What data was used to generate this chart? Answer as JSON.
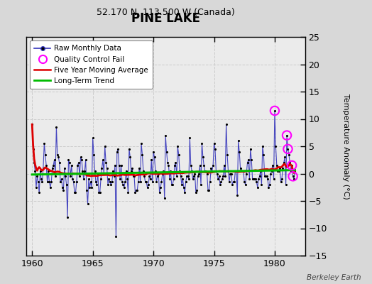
{
  "title": "PINE LAKE",
  "subtitle": "52.170 N, 113.500 W (Canada)",
  "credit": "Berkeley Earth",
  "ylabel": "Temperature Anomaly (°C)",
  "xlim": [
    1959.5,
    1982.5
  ],
  "ylim": [
    -15,
    25
  ],
  "yticks": [
    -15,
    -10,
    -5,
    0,
    5,
    10,
    15,
    20,
    25
  ],
  "xticks": [
    1960,
    1965,
    1970,
    1975,
    1980
  ],
  "bg_color": "#d8d8d8",
  "plot_bg_color": "#ebebeb",
  "raw_color": "#3333bb",
  "raw_dot_color": "#000000",
  "ma_color": "#dd0000",
  "trend_color": "#00bb00",
  "qc_color": "#ff00ff",
  "raw_monthly": [
    9.0,
    4.5,
    2.0,
    0.5,
    -2.5,
    -0.5,
    -1.5,
    -3.5,
    0.5,
    -1.0,
    -1.5,
    1.0,
    5.5,
    3.5,
    1.5,
    -1.5,
    0.5,
    -1.5,
    -2.5,
    -1.5,
    1.0,
    1.5,
    2.5,
    -0.5,
    8.5,
    3.5,
    3.0,
    2.0,
    -1.5,
    -1.0,
    -2.5,
    -3.0,
    1.0,
    -0.5,
    -2.0,
    -8.0,
    2.5,
    2.0,
    -0.5,
    1.5,
    -1.0,
    -1.5,
    -3.5,
    -3.5,
    -1.5,
    1.5,
    2.0,
    -0.5,
    3.0,
    2.5,
    0.5,
    -1.0,
    0.5,
    2.5,
    -3.0,
    -5.5,
    -1.0,
    -2.5,
    -1.5,
    -2.5,
    6.5,
    3.5,
    0.5,
    -1.5,
    -2.0,
    0.0,
    -3.5,
    -3.5,
    -1.0,
    1.0,
    2.5,
    0.0,
    5.0,
    2.0,
    1.0,
    -2.0,
    -1.0,
    -1.5,
    -2.0,
    -1.5,
    0.5,
    -0.5,
    1.5,
    -11.5,
    4.0,
    4.5,
    1.5,
    -1.0,
    1.5,
    -1.5,
    -2.0,
    -2.5,
    -1.5,
    0.5,
    -1.0,
    -3.5,
    4.5,
    3.0,
    0.5,
    1.0,
    -0.5,
    -0.5,
    -3.5,
    -3.0,
    -3.0,
    -1.5,
    1.0,
    -1.5,
    5.5,
    3.5,
    0.5,
    -0.5,
    -1.5,
    -1.5,
    -2.5,
    -2.0,
    -0.5,
    -1.0,
    2.5,
    -1.5,
    4.0,
    3.0,
    0.5,
    -1.5,
    -0.5,
    0.0,
    -3.5,
    -2.5,
    -1.5,
    0.0,
    0.5,
    -4.5,
    7.0,
    4.0,
    2.0,
    1.5,
    -1.0,
    0.5,
    -2.0,
    -2.0,
    -1.0,
    1.5,
    2.0,
    -0.5,
    5.0,
    3.5,
    0.5,
    -0.5,
    -2.0,
    -1.0,
    -2.5,
    -3.5,
    -1.5,
    -0.5,
    -0.5,
    -1.0,
    6.5,
    1.5,
    0.5,
    -1.0,
    -0.5,
    0.0,
    -3.5,
    -3.0,
    -0.5,
    0.0,
    1.5,
    -2.0,
    5.5,
    3.0,
    1.5,
    0.5,
    0.5,
    0.0,
    -3.0,
    -3.0,
    -1.5,
    1.0,
    0.5,
    1.5,
    5.5,
    4.5,
    0.5,
    0.0,
    -1.0,
    -0.5,
    -2.0,
    -1.5,
    -1.0,
    -0.5,
    1.5,
    -0.5,
    9.0,
    3.5,
    0.5,
    -1.5,
    0.0,
    0.0,
    -2.0,
    -1.5,
    -1.5,
    0.5,
    0.5,
    -4.0,
    6.0,
    4.0,
    1.0,
    0.5,
    0.5,
    0.5,
    -1.5,
    -2.0,
    0.0,
    2.0,
    2.5,
    -1.0,
    4.5,
    2.5,
    -1.0,
    -1.0,
    -1.0,
    -1.0,
    -1.5,
    -2.5,
    -1.0,
    -0.5,
    0.5,
    -2.0,
    5.0,
    3.5,
    -0.5,
    -0.5,
    -0.5,
    -1.0,
    -2.5,
    -2.0,
    0.0,
    0.5,
    1.5,
    -1.0,
    11.5,
    5.0,
    1.5,
    0.5,
    0.5,
    1.0,
    -1.5,
    -1.0,
    1.0,
    2.0,
    3.0,
    -2.0,
    7.0,
    4.5,
    3.5,
    2.0,
    0.5,
    1.5,
    -0.5,
    -1.0,
    0.5
  ],
  "qc_indices": [
    240
  ],
  "qc_indices_extra": [
    252,
    253,
    257,
    258
  ],
  "start_year": 1960,
  "n_years": 22,
  "ma_window": 60,
  "trend_start": 1960,
  "trend_end": 1982
}
